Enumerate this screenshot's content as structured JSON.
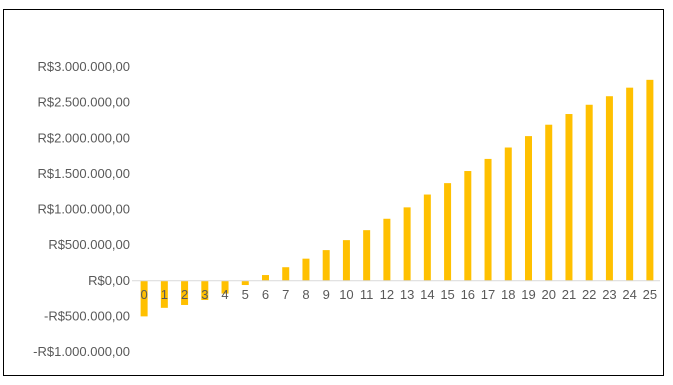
{
  "chart_data": {
    "type": "bar",
    "categories": [
      "0",
      "1",
      "2",
      "3",
      "4",
      "5",
      "6",
      "7",
      "8",
      "9",
      "10",
      "11",
      "12",
      "13",
      "14",
      "15",
      "16",
      "17",
      "18",
      "19",
      "20",
      "21",
      "22",
      "23",
      "24",
      "25"
    ],
    "values": [
      -500000,
      -380000,
      -340000,
      -270000,
      -180000,
      -60000,
      80000,
      190000,
      310000,
      430000,
      570000,
      710000,
      870000,
      1030000,
      1210000,
      1370000,
      1540000,
      1710000,
      1870000,
      2030000,
      2190000,
      2340000,
      2470000,
      2590000,
      2710000,
      2820000
    ],
    "ylim": [
      -1000000,
      3000000
    ],
    "yticks": [
      {
        "value": 3000000,
        "label": "R$3.000.000,00"
      },
      {
        "value": 2500000,
        "label": "R$2.500.000,00"
      },
      {
        "value": 2000000,
        "label": "R$2.000.000,00"
      },
      {
        "value": 1500000,
        "label": "R$1.500.000,00"
      },
      {
        "value": 1000000,
        "label": "R$1.000.000,00"
      },
      {
        "value": 500000,
        "label": "R$500.000,00"
      },
      {
        "value": 0,
        "label": "R$0,00"
      },
      {
        "value": -500000,
        "label": "-R$500.000,00"
      },
      {
        "value": -1000000,
        "label": "-R$1.000.000,00"
      }
    ],
    "title": "",
    "xlabel": "",
    "ylabel": "",
    "grid": false,
    "legend": "none",
    "colors": {
      "bar": "#FFC000",
      "axis": "#D9D9D9",
      "text": "#595959"
    }
  }
}
